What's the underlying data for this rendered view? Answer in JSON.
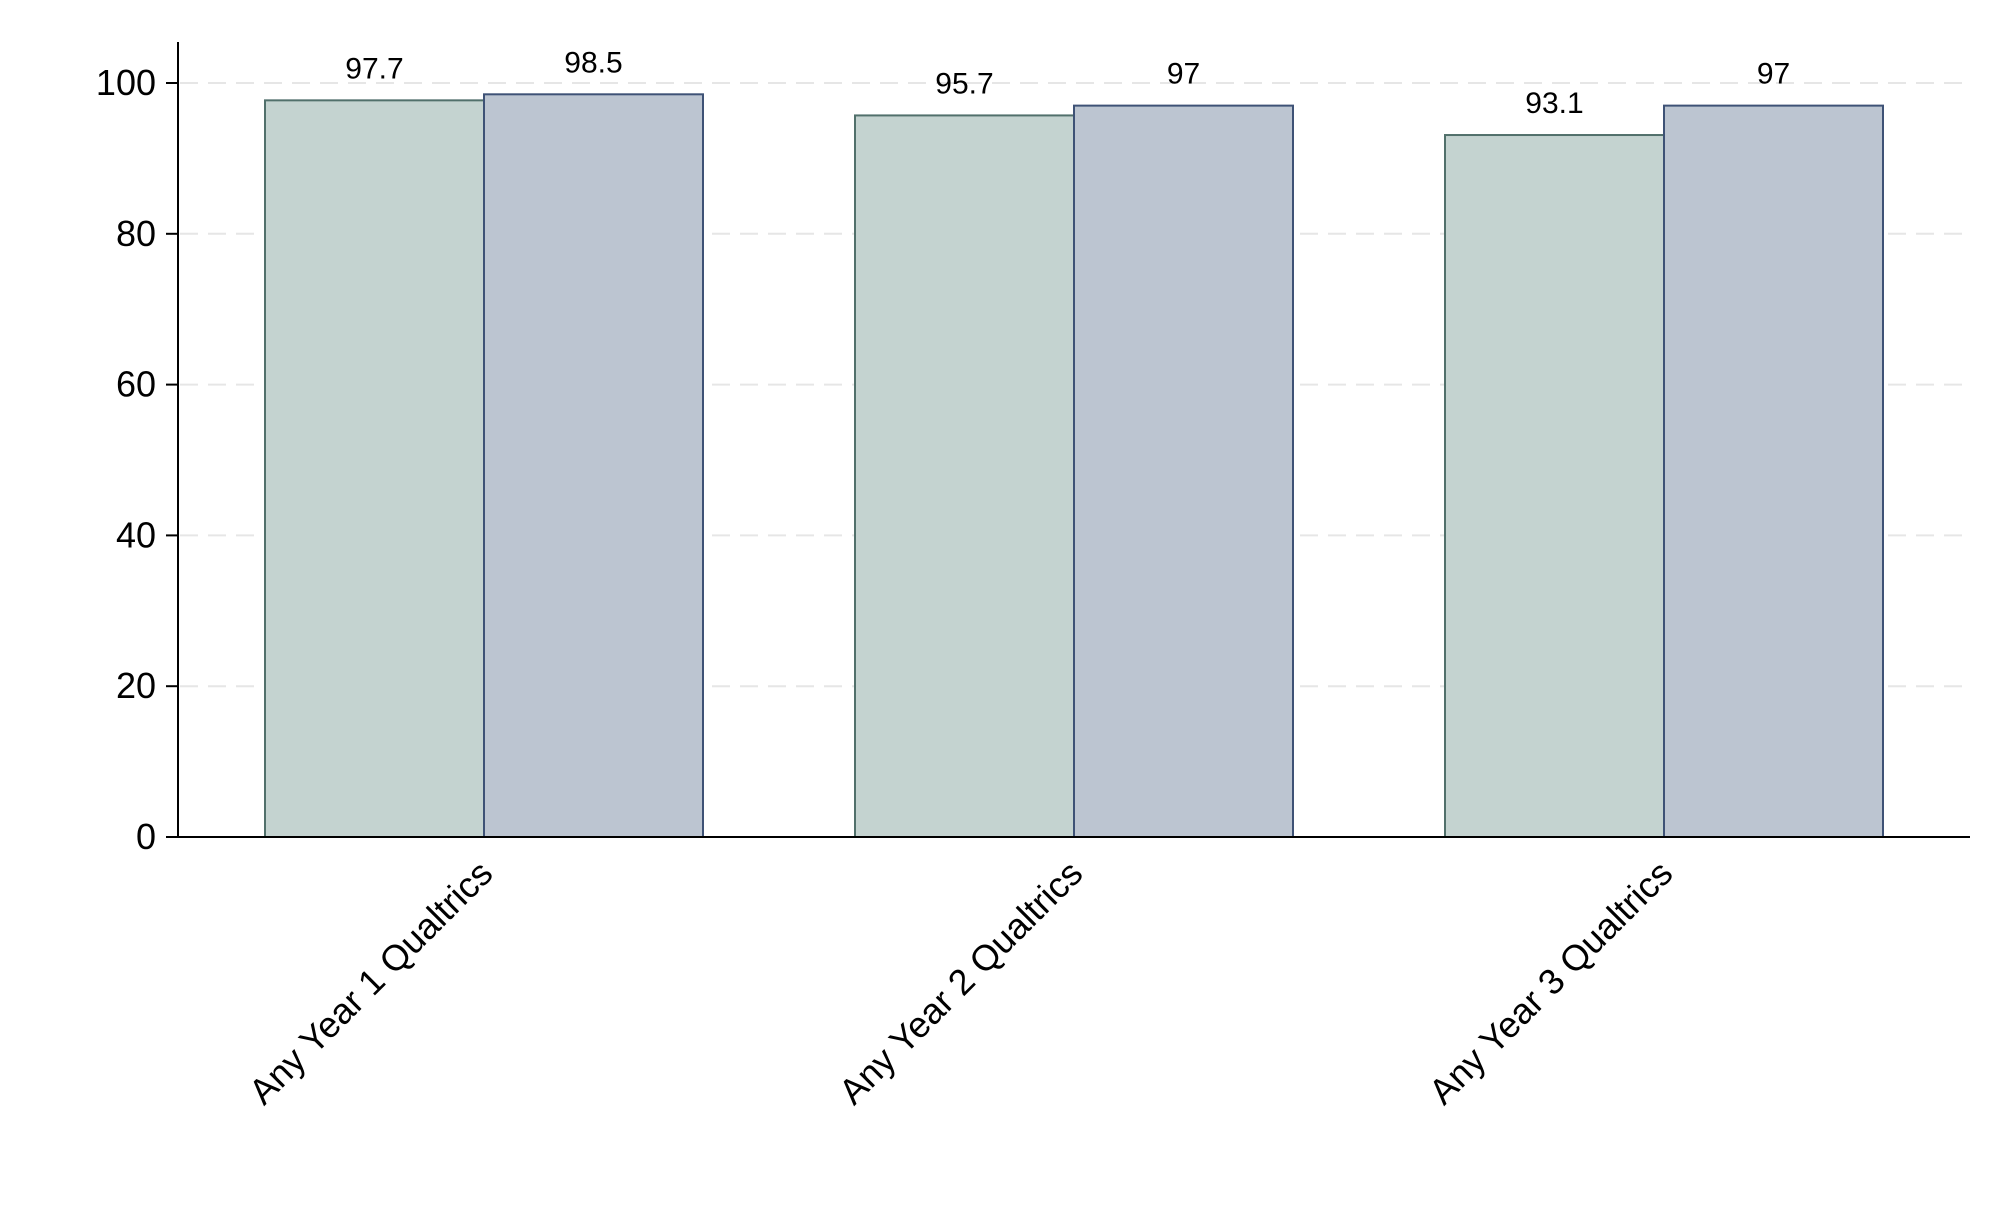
{
  "chart_data": {
    "type": "bar",
    "title": "",
    "xlabel": "",
    "ylabel": "",
    "ylim": [
      0,
      105
    ],
    "y_ticks": [
      0,
      20,
      40,
      60,
      80,
      100
    ],
    "grid": "horizontal dashed",
    "legend": "none",
    "categories": [
      "Any Year 1 Qualtrics",
      "Any Year 2 Qualtrics",
      "Any Year 3 Qualtrics"
    ],
    "series": [
      {
        "values": [
          97.7,
          95.7,
          93.1
        ],
        "labels": [
          "97.7",
          "95.7",
          "93.1"
        ],
        "fill": "#c4d3d0",
        "stroke": "#51706b"
      },
      {
        "values": [
          98.5,
          97,
          97
        ],
        "labels": [
          "98.5",
          "97",
          "97"
        ],
        "fill": "#bcc5d1",
        "stroke": "#3e5276"
      }
    ]
  }
}
